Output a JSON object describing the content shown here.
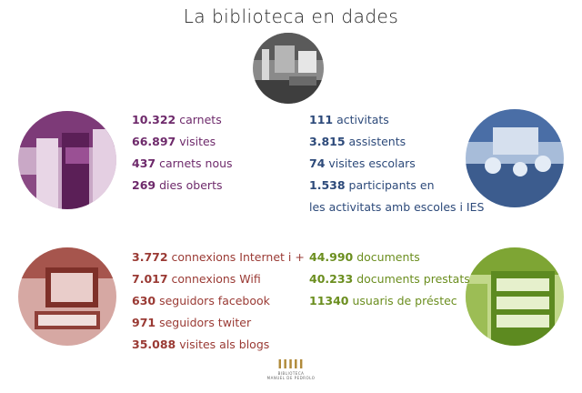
{
  "title": "La biblioteca en dades",
  "colors": {
    "purple": "#6e2a6b",
    "blue": "#2d4a7a",
    "red": "#9a3a34",
    "green": "#6b8e1f",
    "logo": "#b08a3a"
  },
  "group_users": [
    {
      "num": "10.322",
      "label": " carnets"
    },
    {
      "num": "66.897",
      "label": " visites"
    },
    {
      "num": "437",
      "label": " carnets nous"
    },
    {
      "num": "269",
      "label": " dies oberts"
    }
  ],
  "group_activities": [
    {
      "num": "111",
      "label": " activitats"
    },
    {
      "num": "3.815",
      "label": " assistents"
    },
    {
      "num": "74",
      "label": " visites escolars"
    },
    {
      "num": "1.538",
      "label": "  participants en"
    },
    {
      "num": "",
      "label": "les activitats amb escoles i IES"
    }
  ],
  "group_digital": [
    {
      "num": "3.772",
      "label": "  connexions Internet i +"
    },
    {
      "num": "7.017",
      "label": " connexions Wifi"
    },
    {
      "num": "630",
      "label": " seguidors facebook"
    },
    {
      "num": "971",
      "label": " seguidors twiter"
    },
    {
      "num": "35.088",
      "label": " visites als blogs"
    }
  ],
  "group_collection": [
    {
      "num": "44.990",
      "label": " documents"
    },
    {
      "num": "40.233",
      "label": " documents prestats"
    },
    {
      "num": "11340",
      "label": " usuaris de préstec"
    }
  ],
  "logo": {
    "mark": "IIIII",
    "line1": "BIBLIOTECA",
    "line2": "MANUEL DE PEDROLO"
  }
}
